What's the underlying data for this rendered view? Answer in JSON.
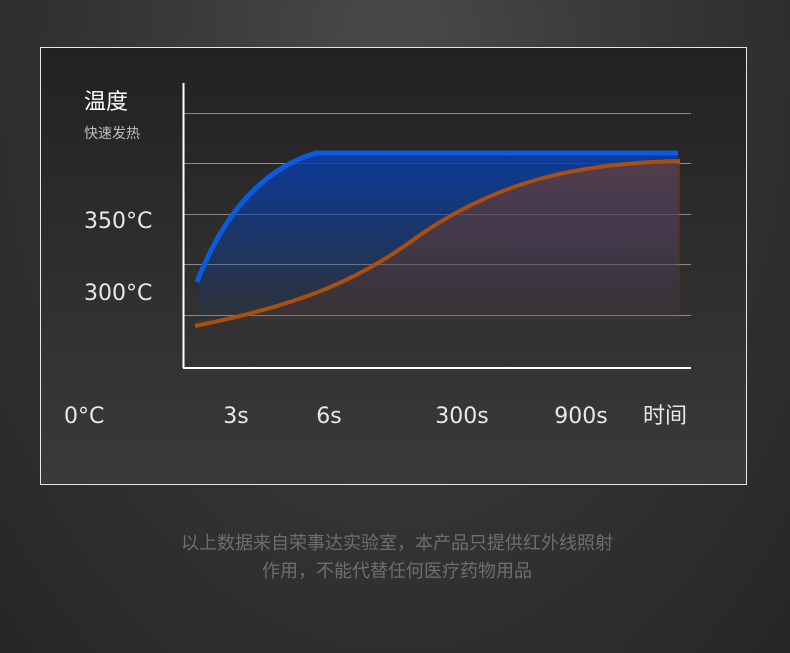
{
  "header": {
    "title": "温度",
    "subtitle": "快速发热"
  },
  "y_labels": [
    "350°C",
    "300°C"
  ],
  "x_labels": [
    "0°C",
    "3s",
    "6s",
    "300s",
    "900s",
    "时间"
  ],
  "footer": [
    "以上数据来自荣事达实验室，本产品只提供红外线照射",
    "作用，不能代替任何医疗药物用品"
  ]
}
